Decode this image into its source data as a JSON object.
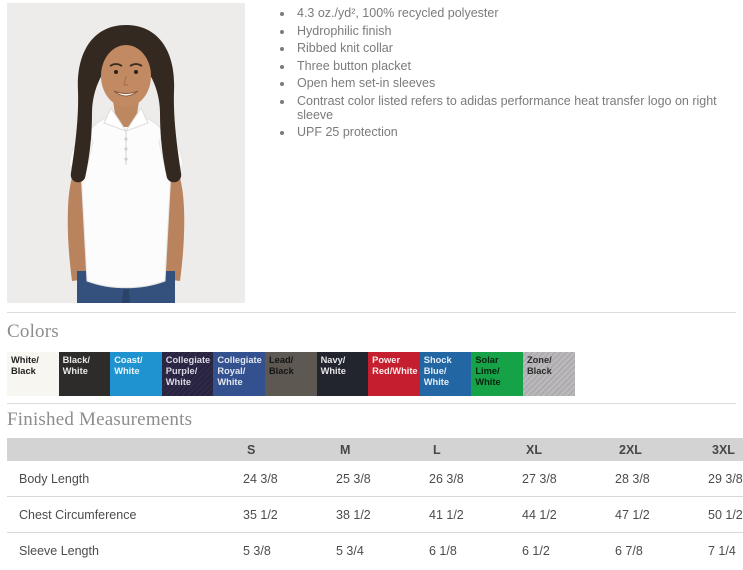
{
  "product": {
    "photo_alt": "Model wearing white short-sleeve polo shirt with navy pants",
    "features": [
      "4.3 oz./yd², 100% recycled polyester",
      "Hydrophilic finish",
      "Ribbed knit collar",
      "Three button placket",
      "Open hem set-in sleeves",
      "Contrast color listed refers to adidas performance heat transfer logo on right sleeve",
      "UPF 25 protection"
    ]
  },
  "colors_section": {
    "heading": "Colors",
    "swatches": [
      {
        "label": "White/ Black",
        "bg": "#f8f6f1",
        "text": "#1f1f1f"
      },
      {
        "label": "Black/ White",
        "bg": "#2d2c2a",
        "text": "#e9e9e9"
      },
      {
        "label": "Coast/ White",
        "bg": "#1e93cf",
        "text": "#eef6fb"
      },
      {
        "label": "Collegiate Purple/ White",
        "bg": "repeating-linear-gradient(135deg, #2e2a47 0 2px, #262240 2px 4px)",
        "text": "#d9d9e2"
      },
      {
        "label": "Collegiate Royal/ White",
        "bg": "#33518e",
        "text": "#e2e7f1"
      },
      {
        "label": "Lead/ Black",
        "bg": "#5d5952",
        "text": "#141414"
      },
      {
        "label": "Navy/ White",
        "bg": "#23252e",
        "text": "#e6e6e9"
      },
      {
        "label": "Power Red/White",
        "bg": "#c41e2f",
        "text": "#fbeaea"
      },
      {
        "label": "Shock Blue/ White",
        "bg": "#2267a3",
        "text": "#e3edf5"
      },
      {
        "label": "Solar Lime/ White",
        "bg": "#16a347",
        "text": "#07230f"
      },
      {
        "label": "Zone/ Black",
        "bg": "repeating-linear-gradient(135deg, #bcbabc 0 2px, #adabad 2px 4px)",
        "text": "#2a2a2a"
      }
    ]
  },
  "measurements": {
    "heading": "Finished Measurements",
    "size_columns": [
      "S",
      "M",
      "L",
      "XL",
      "2XL",
      "3XL"
    ],
    "rows": [
      {
        "label": "Body Length",
        "values": [
          "24 3/8",
          "25 3/8",
          "26 3/8",
          "27 3/8",
          "28 3/8",
          "29 3/8"
        ]
      },
      {
        "label": "Chest Circumference",
        "values": [
          "35 1/2",
          "38 1/2",
          "41 1/2",
          "44 1/2",
          "47 1/2",
          "50 1/2"
        ]
      },
      {
        "label": "Sleeve Length",
        "values": [
          "5 3/8",
          "5 3/4",
          "6 1/8",
          "6 1/2",
          "6 7/8",
          "7 1/4"
        ]
      }
    ]
  }
}
